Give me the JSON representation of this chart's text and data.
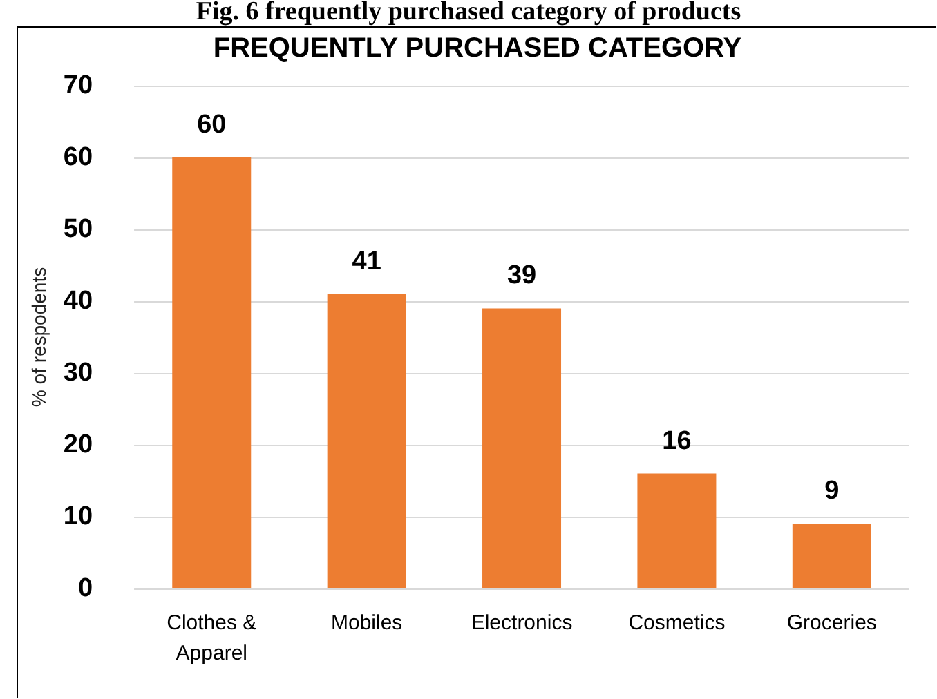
{
  "chart_data": {
    "type": "bar",
    "title": "FREQUENTLY PURCHASED CATEGORY",
    "annotations": [
      "Fig. 6 frequently purchased category of products"
    ],
    "ylabel": "% of respodents",
    "categories": [
      "Clothes &\nApparel",
      "Mobiles",
      "Electronics",
      "Cosmetics",
      "Groceries"
    ],
    "values": [
      60,
      41,
      39,
      16,
      9
    ],
    "color": "#ed7d31",
    "ylim": [
      0,
      70
    ],
    "yticks": [
      0,
      10,
      20,
      30,
      40,
      50,
      60,
      70
    ],
    "grid": "y",
    "data_labels": true
  }
}
